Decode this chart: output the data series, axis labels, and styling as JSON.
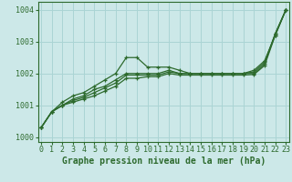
{
  "xlabel": "Graphe pression niveau de la mer (hPa)",
  "x": [
    0,
    1,
    2,
    3,
    4,
    5,
    6,
    7,
    8,
    9,
    10,
    11,
    12,
    13,
    14,
    15,
    16,
    17,
    18,
    19,
    20,
    21,
    22,
    23
  ],
  "series": [
    [
      1000.3,
      1000.8,
      1001.1,
      1001.3,
      1001.4,
      1001.6,
      1001.8,
      1002.0,
      1002.5,
      1002.5,
      1002.2,
      1002.2,
      1002.2,
      1002.1,
      1002.0,
      1002.0,
      1002.0,
      1002.0,
      1002.0,
      1002.0,
      1002.1,
      1002.4,
      1003.2,
      1004.0
    ],
    [
      1000.3,
      1000.8,
      1001.0,
      1001.2,
      1001.3,
      1001.5,
      1001.6,
      1001.8,
      1002.0,
      1002.0,
      1002.0,
      1002.0,
      1002.1,
      1002.0,
      1002.0,
      1002.0,
      1002.0,
      1002.0,
      1002.0,
      1002.0,
      1002.05,
      1002.35,
      1003.25,
      1004.0
    ],
    [
      1000.3,
      1000.8,
      1001.0,
      1001.15,
      1001.25,
      1001.4,
      1001.55,
      1001.7,
      1001.95,
      1001.95,
      1001.95,
      1001.95,
      1002.05,
      1002.0,
      1002.0,
      1002.0,
      1002.0,
      1002.0,
      1002.0,
      1002.0,
      1002.0,
      1002.3,
      1003.25,
      1004.0
    ],
    [
      1000.3,
      1000.8,
      1001.0,
      1001.1,
      1001.2,
      1001.3,
      1001.45,
      1001.6,
      1001.85,
      1001.85,
      1001.9,
      1001.9,
      1002.0,
      1001.95,
      1001.95,
      1001.95,
      1001.95,
      1001.95,
      1001.95,
      1001.95,
      1001.97,
      1002.25,
      1003.2,
      1004.0
    ]
  ],
  "line_color": "#2d6a2d",
  "marker": "+",
  "marker_size": 3.5,
  "marker_lw": 0.9,
  "line_width": 0.9,
  "bg_color": "#cce8e8",
  "grid_color": "#aad4d4",
  "ylim": [
    999.85,
    1004.25
  ],
  "yticks": [
    1000,
    1001,
    1002,
    1003,
    1004
  ],
  "xticks": [
    0,
    1,
    2,
    3,
    4,
    5,
    6,
    7,
    8,
    9,
    10,
    11,
    12,
    13,
    14,
    15,
    16,
    17,
    18,
    19,
    20,
    21,
    22,
    23
  ],
  "tick_fontsize": 6,
  "xlabel_fontsize": 7,
  "figsize": [
    3.2,
    2.0
  ],
  "dpi": 100
}
